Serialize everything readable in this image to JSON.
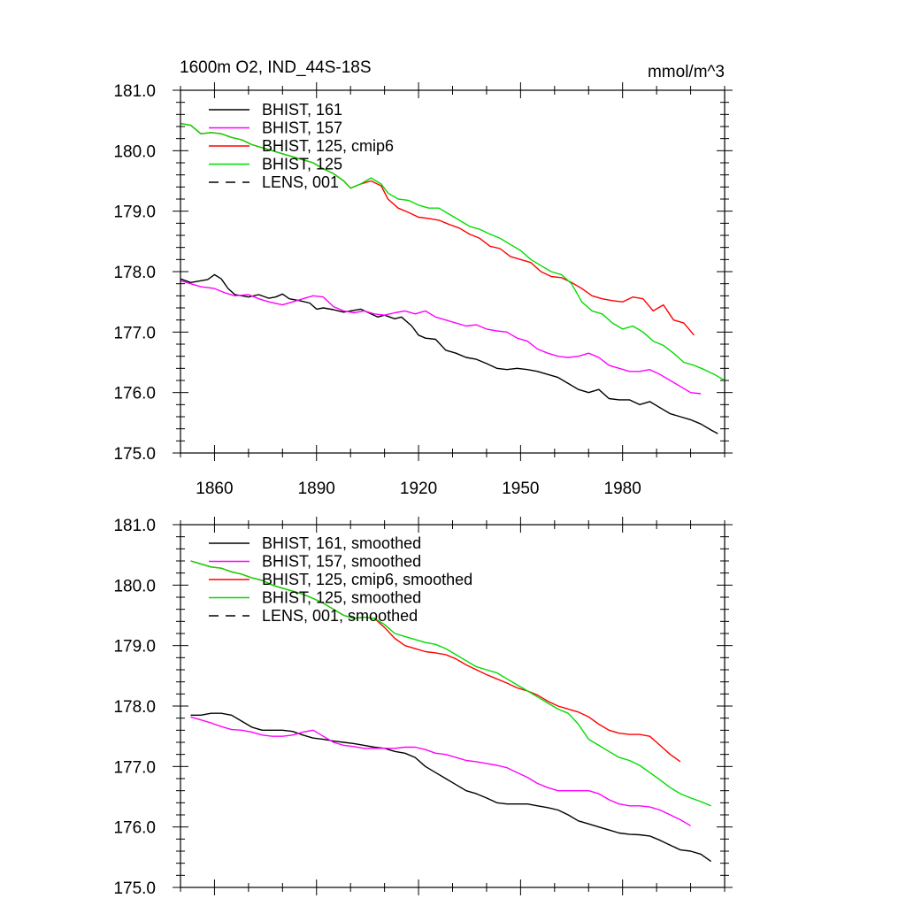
{
  "chart_data": [
    {
      "type": "line",
      "title": "1600m O2, IND_44S-18S",
      "units": "mmol/m^3",
      "xlim": [
        1850,
        2010
      ],
      "ylim": [
        175.0,
        181.0
      ],
      "yticks": [
        "175.0",
        "176.0",
        "177.0",
        "178.0",
        "179.0",
        "180.0",
        "181.0"
      ],
      "yticks_values": [
        175,
        176,
        177,
        178,
        179,
        180,
        181
      ],
      "xticks": [
        "1860",
        "1890",
        "1920",
        "1950",
        "1980"
      ],
      "xticks_values": [
        1860,
        1890,
        1920,
        1950,
        1980
      ],
      "legend_position": "top-left",
      "series": [
        {
          "name": "BHIST, 161",
          "color": "#000000",
          "dash": "solid",
          "x": [
            1850,
            1853,
            1856,
            1858,
            1860,
            1862,
            1864,
            1866,
            1868,
            1870,
            1873,
            1876,
            1878,
            1880,
            1882,
            1885,
            1888,
            1890,
            1892,
            1895,
            1898,
            1900,
            1903,
            1906,
            1908,
            1910,
            1913,
            1915,
            1918,
            1920,
            1922,
            1925,
            1928,
            1931,
            1934,
            1937,
            1940,
            1943,
            1946,
            1949,
            1952,
            1955,
            1958,
            1961,
            1964,
            1967,
            1970,
            1973,
            1976,
            1979,
            1982,
            1985,
            1988,
            1991,
            1994,
            1997,
            2000,
            2003,
            2006,
            2008
          ],
          "values": [
            177.88,
            177.82,
            177.85,
            177.87,
            177.95,
            177.88,
            177.72,
            177.62,
            177.6,
            177.58,
            177.62,
            177.56,
            177.58,
            177.63,
            177.55,
            177.52,
            177.48,
            177.38,
            177.4,
            177.37,
            177.33,
            177.35,
            177.38,
            177.3,
            177.25,
            177.28,
            177.22,
            177.25,
            177.1,
            176.95,
            176.9,
            176.88,
            176.7,
            176.65,
            176.58,
            176.55,
            176.48,
            176.4,
            176.38,
            176.4,
            176.38,
            176.35,
            176.3,
            176.25,
            176.15,
            176.05,
            176.0,
            176.05,
            175.9,
            175.88,
            175.88,
            175.8,
            175.85,
            175.75,
            175.65,
            175.6,
            175.55,
            175.48,
            175.38,
            175.32
          ]
        },
        {
          "name": "BHIST, 157",
          "color": "#ff00ff",
          "dash": "solid",
          "x": [
            1850,
            1853,
            1856,
            1860,
            1863,
            1866,
            1870,
            1873,
            1876,
            1880,
            1883,
            1886,
            1889,
            1892,
            1895,
            1898,
            1901,
            1904,
            1907,
            1910,
            1913,
            1916,
            1919,
            1922,
            1925,
            1928,
            1931,
            1934,
            1937,
            1940,
            1943,
            1946,
            1949,
            1952,
            1955,
            1958,
            1961,
            1964,
            1967,
            1970,
            1973,
            1976,
            1979,
            1982,
            1985,
            1988,
            1991,
            1994,
            1997,
            2000,
            2003
          ],
          "values": [
            177.85,
            177.8,
            177.75,
            177.72,
            177.65,
            177.6,
            177.62,
            177.55,
            177.5,
            177.45,
            177.5,
            177.55,
            177.6,
            177.58,
            177.42,
            177.35,
            177.32,
            177.35,
            177.3,
            177.28,
            177.32,
            177.35,
            177.3,
            177.35,
            177.25,
            177.2,
            177.15,
            177.1,
            177.12,
            177.05,
            177.02,
            177.0,
            176.9,
            176.85,
            176.72,
            176.65,
            176.6,
            176.58,
            176.6,
            176.65,
            176.58,
            176.45,
            176.4,
            176.35,
            176.35,
            176.38,
            176.3,
            176.2,
            176.1,
            176.0,
            175.98
          ]
        },
        {
          "name": "BHIST, 125, cmip6",
          "color": "#ff0000",
          "dash": "solid",
          "x": [
            1850,
            1853,
            1856,
            1859,
            1862,
            1865,
            1868,
            1871,
            1874,
            1877,
            1880,
            1883,
            1886,
            1889,
            1892,
            1895,
            1898,
            1900,
            1903,
            1906,
            1909,
            1911,
            1914,
            1917,
            1920,
            1923,
            1926,
            1929,
            1932,
            1935,
            1938,
            1941,
            1944,
            1947,
            1950,
            1953,
            1956,
            1959,
            1962,
            1965,
            1968,
            1971,
            1974,
            1977,
            1980,
            1983,
            1986,
            1989,
            1992,
            1995,
            1998,
            2001
          ],
          "values": [
            180.45,
            180.42,
            180.28,
            180.3,
            180.28,
            180.22,
            180.18,
            180.1,
            180.05,
            180.0,
            179.95,
            179.9,
            179.85,
            179.8,
            179.7,
            179.62,
            179.5,
            179.38,
            179.45,
            179.5,
            179.42,
            179.2,
            179.05,
            178.98,
            178.9,
            178.88,
            178.85,
            178.78,
            178.72,
            178.62,
            178.55,
            178.42,
            178.38,
            178.25,
            178.2,
            178.15,
            178.0,
            177.92,
            177.9,
            177.82,
            177.72,
            177.6,
            177.55,
            177.52,
            177.5,
            177.58,
            177.55,
            177.35,
            177.45,
            177.2,
            177.15,
            176.95
          ]
        },
        {
          "name": "BHIST, 125",
          "color": "#00dd00",
          "dash": "solid",
          "x": [
            1850,
            1853,
            1856,
            1859,
            1862,
            1865,
            1868,
            1871,
            1874,
            1877,
            1880,
            1883,
            1886,
            1889,
            1892,
            1895,
            1898,
            1900,
            1903,
            1906,
            1909,
            1911,
            1914,
            1917,
            1920,
            1923,
            1926,
            1929,
            1932,
            1935,
            1938,
            1941,
            1944,
            1947,
            1950,
            1953,
            1956,
            1959,
            1962,
            1965,
            1968,
            1971,
            1974,
            1977,
            1980,
            1983,
            1986,
            1989,
            1992,
            1995,
            1998,
            2001,
            2004,
            2007,
            2010
          ],
          "values": [
            180.45,
            180.42,
            180.28,
            180.3,
            180.28,
            180.22,
            180.18,
            180.1,
            180.05,
            180.0,
            179.95,
            179.9,
            179.85,
            179.8,
            179.7,
            179.62,
            179.5,
            179.38,
            179.45,
            179.55,
            179.45,
            179.3,
            179.2,
            179.18,
            179.1,
            179.05,
            179.05,
            178.95,
            178.85,
            178.75,
            178.7,
            178.62,
            178.55,
            178.45,
            178.35,
            178.2,
            178.1,
            178.0,
            177.95,
            177.8,
            177.5,
            177.35,
            177.3,
            177.15,
            177.05,
            177.1,
            177.0,
            176.85,
            176.78,
            176.65,
            176.5,
            176.45,
            176.38,
            176.3,
            176.2
          ]
        },
        {
          "name": "LENS, 001",
          "color": "#000000",
          "dash": "dashed",
          "x": [],
          "values": []
        }
      ]
    },
    {
      "type": "line",
      "title": "",
      "xlim": [
        1850,
        2010
      ],
      "ylim": [
        175.0,
        181.0
      ],
      "yticks": [
        "175.0",
        "176.0",
        "177.0",
        "178.0",
        "179.0",
        "180.0",
        "181.0"
      ],
      "yticks_values": [
        175,
        176,
        177,
        178,
        179,
        180,
        181
      ],
      "xticks_values": [
        1860,
        1890,
        1920,
        1950,
        1980
      ],
      "legend_position": "top-left",
      "series": [
        {
          "name": "BHIST, 161, smoothed",
          "color": "#000000",
          "dash": "solid",
          "x": [
            1853,
            1856,
            1859,
            1862,
            1865,
            1868,
            1871,
            1874,
            1877,
            1880,
            1883,
            1886,
            1889,
            1892,
            1895,
            1898,
            1901,
            1904,
            1907,
            1910,
            1913,
            1916,
            1919,
            1922,
            1925,
            1928,
            1931,
            1934,
            1937,
            1940,
            1943,
            1946,
            1949,
            1952,
            1955,
            1958,
            1961,
            1964,
            1967,
            1970,
            1973,
            1976,
            1979,
            1982,
            1985,
            1988,
            1991,
            1994,
            1997,
            2000,
            2003,
            2006
          ],
          "values": [
            177.85,
            177.85,
            177.88,
            177.88,
            177.85,
            177.75,
            177.65,
            177.6,
            177.6,
            177.6,
            177.58,
            177.52,
            177.47,
            177.45,
            177.42,
            177.4,
            177.38,
            177.35,
            177.32,
            177.3,
            177.25,
            177.22,
            177.15,
            177.0,
            176.9,
            176.8,
            176.7,
            176.6,
            176.55,
            176.48,
            176.4,
            176.38,
            176.38,
            176.38,
            176.35,
            176.32,
            176.28,
            176.2,
            176.1,
            176.05,
            176.0,
            175.95,
            175.9,
            175.88,
            175.87,
            175.85,
            175.78,
            175.7,
            175.62,
            175.6,
            175.55,
            175.43
          ]
        },
        {
          "name": "BHIST, 157, smoothed",
          "color": "#ff00ff",
          "dash": "solid",
          "x": [
            1853,
            1856,
            1859,
            1862,
            1865,
            1868,
            1871,
            1874,
            1877,
            1880,
            1883,
            1886,
            1889,
            1892,
            1895,
            1898,
            1901,
            1904,
            1907,
            1910,
            1913,
            1916,
            1919,
            1922,
            1925,
            1928,
            1931,
            1934,
            1937,
            1940,
            1943,
            1946,
            1949,
            1952,
            1955,
            1958,
            1961,
            1964,
            1967,
            1970,
            1973,
            1976,
            1979,
            1982,
            1985,
            1988,
            1991,
            1994,
            1997,
            2000
          ],
          "values": [
            177.82,
            177.77,
            177.72,
            177.66,
            177.61,
            177.6,
            177.57,
            177.52,
            177.5,
            177.5,
            177.52,
            177.57,
            177.6,
            177.5,
            177.4,
            177.35,
            177.33,
            177.3,
            177.3,
            177.3,
            177.3,
            177.32,
            177.32,
            177.28,
            177.22,
            177.2,
            177.15,
            177.1,
            177.08,
            177.05,
            177.02,
            176.98,
            176.9,
            176.82,
            176.72,
            176.65,
            176.6,
            176.6,
            176.6,
            176.6,
            176.55,
            176.45,
            176.38,
            176.35,
            176.35,
            176.33,
            176.28,
            176.2,
            176.12,
            176.02
          ]
        },
        {
          "name": "BHIST, 125, cmip6, smoothed",
          "color": "#ff0000",
          "dash": "solid",
          "x": [
            1853,
            1856,
            1859,
            1862,
            1865,
            1868,
            1871,
            1874,
            1877,
            1880,
            1883,
            1886,
            1889,
            1892,
            1895,
            1898,
            1901,
            1904,
            1907,
            1910,
            1913,
            1916,
            1919,
            1922,
            1925,
            1928,
            1931,
            1934,
            1937,
            1940,
            1943,
            1946,
            1949,
            1952,
            1955,
            1958,
            1961,
            1964,
            1967,
            1970,
            1973,
            1976,
            1979,
            1982,
            1985,
            1988,
            1991,
            1994,
            1997
          ],
          "values": [
            180.4,
            180.35,
            180.3,
            180.28,
            180.22,
            180.18,
            180.12,
            180.08,
            180.0,
            179.95,
            179.9,
            179.85,
            179.78,
            179.7,
            179.6,
            179.5,
            179.45,
            179.47,
            179.45,
            179.3,
            179.12,
            179.0,
            178.95,
            178.9,
            178.88,
            178.85,
            178.78,
            178.68,
            178.6,
            178.52,
            178.45,
            178.38,
            178.3,
            178.25,
            178.18,
            178.08,
            178.0,
            177.95,
            177.9,
            177.82,
            177.7,
            177.6,
            177.55,
            177.53,
            177.53,
            177.5,
            177.35,
            177.2,
            177.08
          ]
        },
        {
          "name": "BHIST, 125, smoothed",
          "color": "#00dd00",
          "dash": "solid",
          "x": [
            1853,
            1856,
            1859,
            1862,
            1865,
            1868,
            1871,
            1874,
            1877,
            1880,
            1883,
            1886,
            1889,
            1892,
            1895,
            1898,
            1901,
            1904,
            1907,
            1910,
            1913,
            1916,
            1919,
            1922,
            1925,
            1928,
            1931,
            1934,
            1937,
            1940,
            1943,
            1946,
            1949,
            1952,
            1955,
            1958,
            1961,
            1964,
            1967,
            1970,
            1973,
            1976,
            1979,
            1982,
            1985,
            1988,
            1991,
            1994,
            1997,
            2000,
            2003,
            2006
          ],
          "values": [
            180.4,
            180.35,
            180.3,
            180.28,
            180.22,
            180.18,
            180.12,
            180.08,
            180.0,
            179.95,
            179.9,
            179.85,
            179.78,
            179.7,
            179.6,
            179.5,
            179.45,
            179.47,
            179.45,
            179.35,
            179.2,
            179.15,
            179.1,
            179.05,
            179.02,
            178.95,
            178.85,
            178.75,
            178.65,
            178.6,
            178.55,
            178.45,
            178.35,
            178.25,
            178.15,
            178.05,
            177.95,
            177.88,
            177.7,
            177.45,
            177.35,
            177.25,
            177.15,
            177.1,
            177.02,
            176.9,
            176.78,
            176.65,
            176.55,
            176.48,
            176.42,
            176.35
          ]
        },
        {
          "name": "LENS, 001, smoothed",
          "color": "#000000",
          "dash": "dashed",
          "x": [],
          "values": []
        }
      ]
    }
  ]
}
